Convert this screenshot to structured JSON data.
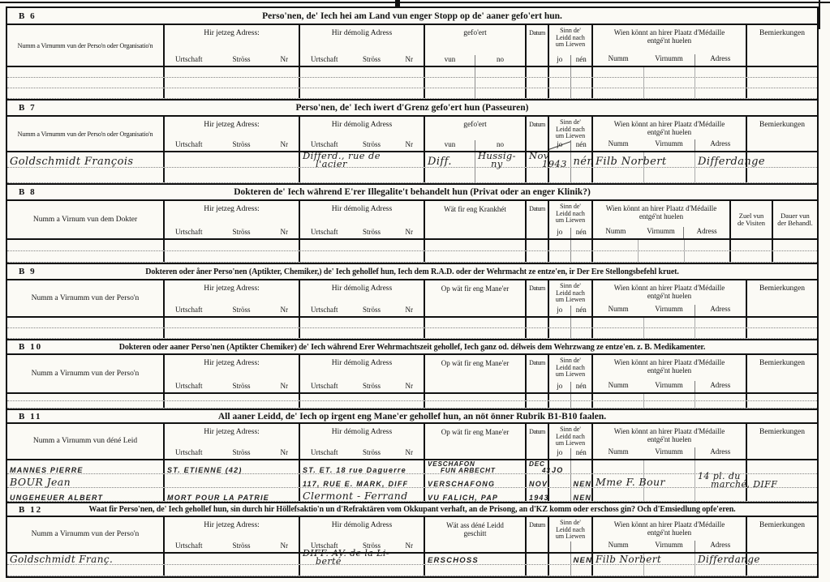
{
  "document": {
    "labels": {
      "jetzeg_adress": "Hir jetzeg Adress:",
      "demolig_adress": "Hir démolig Adress",
      "urtschaft": "Urtschaft",
      "stross": "Ströss",
      "nr": "Nr",
      "gefoert": "gefo'ert",
      "vun": "vun",
      "no": "no",
      "datum": "Datum",
      "sinn_line1": "Sinn de'",
      "sinn_line2": "Leidd nach",
      "sinn_line3": "um Liewen",
      "jo": "jo",
      "nen": "nén",
      "wien_line1": "Wien könnt an hirer Plaatz d'Médaille",
      "wien_line2": "entgé'nt huelen",
      "numm": "Numm",
      "virnumm": "Virnumm",
      "adress": "Adress",
      "bemierkungen": "Bemierkungen",
      "krankheet": "Wät fir eng Krankhét",
      "maneer": "Op wät fir eng Mane'er",
      "geschitt_line1": "Wät ass déné Leidd",
      "geschitt_line2": "geschitt",
      "zuel_line1": "Zuel vun",
      "zuel_line2": "de Visiten",
      "dauer_line1": "Dauer vun",
      "dauer_line2": "der Behandl."
    },
    "sections": [
      {
        "id": "B 6",
        "title": "Perso'nen, de' Iech hei am Land vun enger Stopp op de' aaner gefo'ert hun.",
        "name_header": "Numm a Virnumm vun der Perso'n oder Organisatio'n",
        "middle": "gefoert",
        "right": "bem",
        "rows": [
          {},
          {},
          {}
        ]
      },
      {
        "id": "B 7",
        "title": "Perso'nen, de' Iech iwert d'Grenz gefo'ert hun (Passeuren)",
        "name_header": "Numm a Virnumm vun der Perso'n oder Organisatio'n",
        "middle": "gefoert",
        "right": "bem",
        "jo_crossed": true,
        "rows": [
          {
            "name": {
              "text": "Goldschmidt   François",
              "style": "cur"
            },
            "demolig": {
              "text": "Differd., rue de",
              "text2": "l'acier",
              "style": "cur"
            },
            "vun": {
              "text": "Diff.",
              "style": "cur"
            },
            "no": {
              "text": "Hussig-",
              "text2": "ny",
              "style": "cur"
            },
            "datum": {
              "text": "Nov",
              "text2": "1943",
              "style": "cur"
            },
            "nen": {
              "text": "nén",
              "style": "cur"
            },
            "w_numm": {
              "text": "Filb Norbert",
              "style": "cur"
            },
            "w_adress": {
              "text": "Differdange",
              "style": "cur"
            }
          },
          {}
        ]
      },
      {
        "id": "B 8",
        "title": "Dokteren de' Iech während E'rer Illegalite't behandelt hun (Privat oder an enger Klinik?)",
        "name_header": "Numm a Virnum vun dem Dokter",
        "middle": "krankheet",
        "right": "visiten",
        "rows": [
          {},
          {}
        ]
      },
      {
        "id": "B 9",
        "title": "Dokteren oder åner Perso'nen (Aptikter, Chemiker,) de' Iech gehollef hun, Iech dem R.A.D. oder der Wehrmacht ze entze'en, ir Der Ere Stellongsbefehl kruet.",
        "name_header": "Numm a Virnumm vun der Perso'n",
        "middle": "maneer",
        "right": "bem",
        "rows": [
          {},
          {}
        ]
      },
      {
        "id": "B 10",
        "title": "Dokteren oder aaner Perso'nen (Aptikter Chemiker) de' Iech während Erer Wehrmachtszeit gehollef, Iech ganz od. délweis dem Wehrzwang ze entze'en. z. B. Medikamenter.",
        "name_header": "Numm a Virnumm vun der Perso'n",
        "middle": "maneer",
        "right": "bem",
        "rows": [
          {},
          {}
        ]
      },
      {
        "id": "B 11",
        "title": "All aaner Leidd, de' Iech op irgent eng Mane'er gehollef hun, an nöt önner Rubrik B1-B10 faalen.",
        "name_header": "Numm a Virnumm vun déné Leid",
        "middle": "maneer",
        "right": "bem",
        "rows": [
          {
            "name": {
              "text": "MANNES   PIERRE",
              "style": "caps"
            },
            "jetzeg": {
              "text": "ST. ETIENNE (42)",
              "style": "caps"
            },
            "demolig": {
              "text": "ST. ET.  18 rue Daguerre",
              "style": "caps"
            },
            "mid": {
              "text": "VESCHAFON",
              "text2": "FUN ARBECHT",
              "style": "caps"
            },
            "datum": {
              "text": "DEC",
              "text2": "43",
              "style": "caps"
            },
            "jo": {
              "text": "JO",
              "style": "caps"
            }
          },
          {
            "name": {
              "text": "BOUR   Jean",
              "style": "cur"
            },
            "demolig": {
              "text": "117, RUE E. MARK, DIFF",
              "style": "caps"
            },
            "mid": {
              "text": "VERSCHAFONG",
              "style": "caps"
            },
            "datum": {
              "text": "NOV",
              "style": "caps"
            },
            "nen": {
              "text": "NEN",
              "style": "caps"
            },
            "w_numm": {
              "text": "Mme F. Bour",
              "style": "cur"
            },
            "w_adress": {
              "text": "14 pl. du",
              "text2": "marché, DIFF",
              "style": "cur"
            }
          },
          {
            "name": {
              "text": "UNGEHEUER   ALBERT",
              "style": "caps"
            },
            "jetzeg": {
              "text": "MORT POUR LA PATRIE",
              "style": "caps"
            },
            "demolig": {
              "text": "Clermont - Ferrand",
              "style": "cur"
            },
            "mid": {
              "text": "VU FALICH, PAP",
              "style": "caps"
            },
            "datum": {
              "text": "1943",
              "style": "caps"
            },
            "nen": {
              "text": "NEN",
              "style": "caps"
            }
          }
        ]
      },
      {
        "id": "B 12",
        "title": "Waat fir Perso'nen, de' Iech gehollef hun, sin durch hir Höllefsaktio'n un d'Refraktären vom Okkupant verhaft, an de Prisong, an d'KZ komm oder erschoss gin? Och d'Emsiedlung opfe'eren.",
        "name_header": "Numm a Virnumm vun der Perso'n",
        "middle": "geschitt",
        "right": "bem",
        "no_jonen": true,
        "rows": [
          {
            "name": {
              "text": "Goldschmidt    Franç.",
              "style": "cur"
            },
            "demolig": {
              "text": "DIFF. AV. de la Li-",
              "text2": "berté",
              "style": "cur"
            },
            "mid": {
              "text": "ERSCHOSS",
              "style": "caps"
            },
            "nen": {
              "text": "NEN",
              "style": "caps"
            },
            "w_numm": {
              "text": "Filb Norbert",
              "style": "cur"
            },
            "w_adress": {
              "text": "Differdange",
              "style": "cur"
            }
          },
          {}
        ]
      }
    ]
  }
}
